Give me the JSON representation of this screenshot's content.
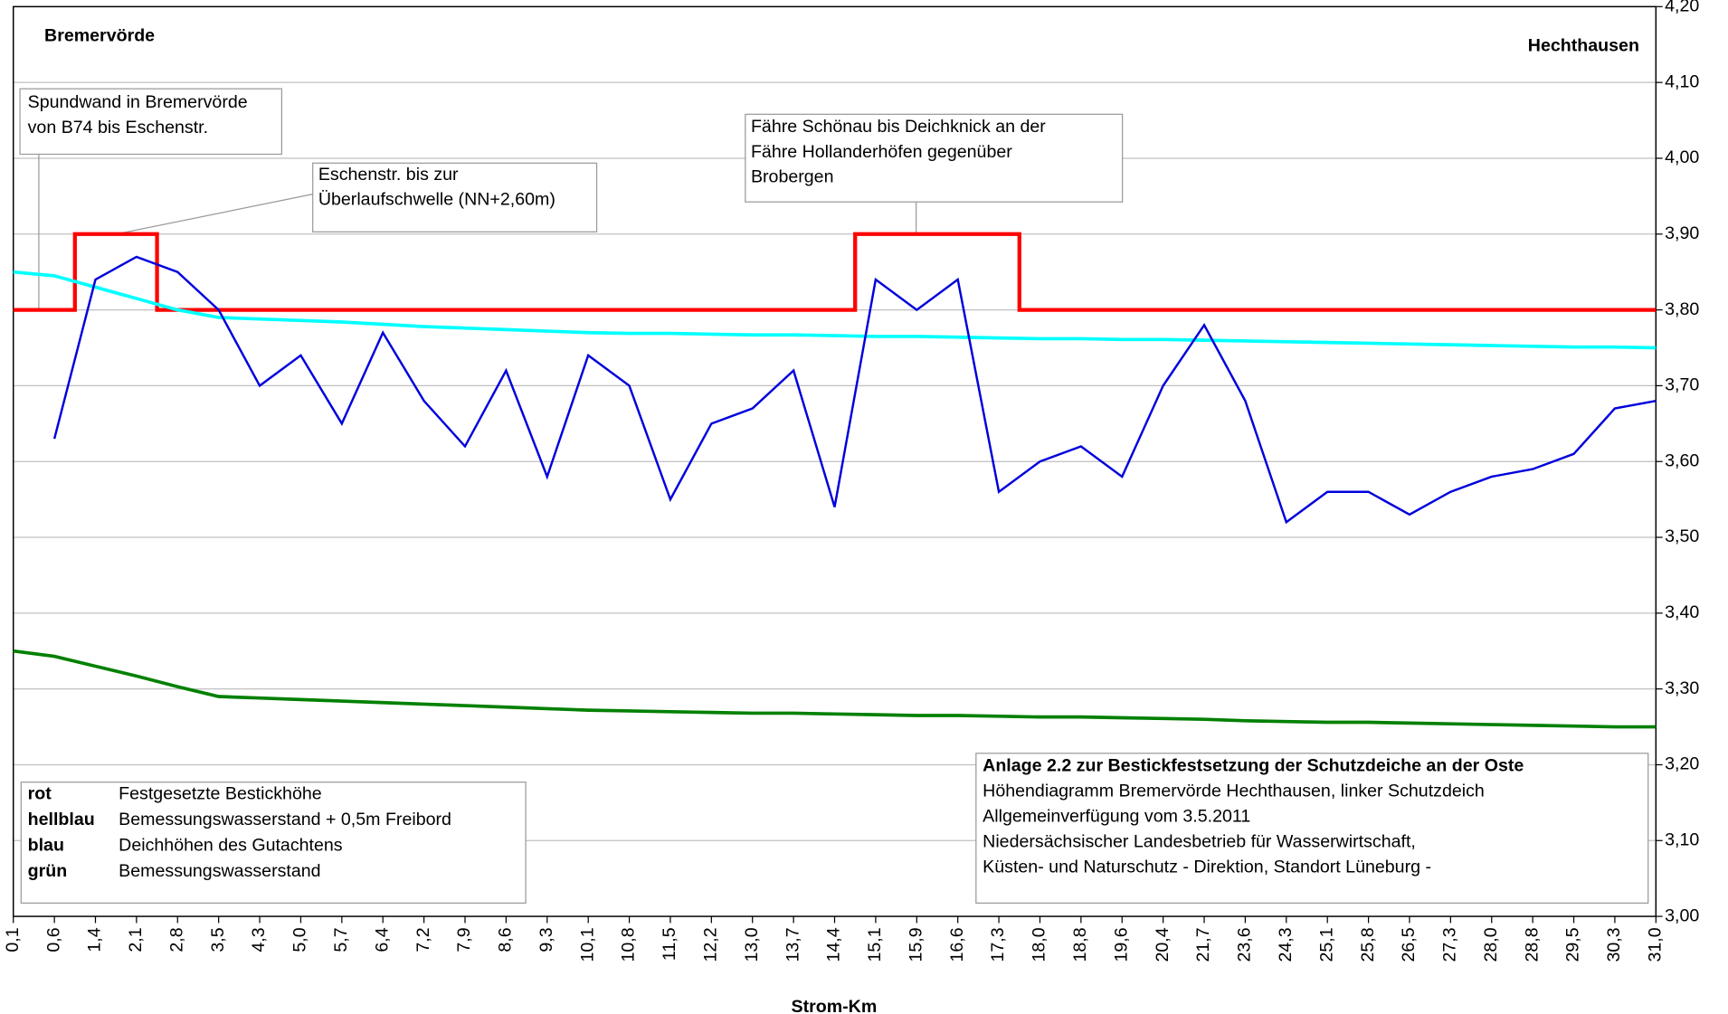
{
  "chart_data": {
    "type": "line",
    "place_left": "Bremervörde",
    "place_right": "Hechthausen",
    "xlabel": "Strom-Km",
    "categories": [
      "0,1",
      "0,6",
      "1,4",
      "2,1",
      "2,8",
      "3,5",
      "4,3",
      "5,0",
      "5,7",
      "6,4",
      "7,2",
      "7,9",
      "8,6",
      "9,3",
      "10,1",
      "10,8",
      "11,5",
      "12,2",
      "13,0",
      "13,7",
      "14,4",
      "15,1",
      "15,9",
      "16,6",
      "17,3",
      "18,0",
      "18,8",
      "19,6",
      "20,4",
      "21,7",
      "23,6",
      "24,3",
      "25,1",
      "25,8",
      "26,5",
      "27,3",
      "28,0",
      "28,8",
      "29,5",
      "30,3",
      "31,0"
    ],
    "ylim": [
      3.0,
      4.2
    ],
    "yticks": [
      {
        "value": 3.0,
        "label": "3,00"
      },
      {
        "value": 3.1,
        "label": "3,10"
      },
      {
        "value": 3.2,
        "label": "3,20"
      },
      {
        "value": 3.3,
        "label": "3,30"
      },
      {
        "value": 3.4,
        "label": "3,40"
      },
      {
        "value": 3.5,
        "label": "3,50"
      },
      {
        "value": 3.6,
        "label": "3,60"
      },
      {
        "value": 3.7,
        "label": "3,70"
      },
      {
        "value": 3.8,
        "label": "3,80"
      },
      {
        "value": 3.9,
        "label": "3,90"
      },
      {
        "value": 4.0,
        "label": "4,00"
      },
      {
        "value": 4.1,
        "label": "4,10"
      },
      {
        "value": 4.2,
        "label": "4,20"
      }
    ],
    "grid": true,
    "series": [
      {
        "name": "Festgesetzte Bestickhöhe",
        "color_word": "rot",
        "color": "#ff0000",
        "step": true,
        "values": [
          3.8,
          3.8,
          3.9,
          3.9,
          3.8,
          3.8,
          3.8,
          3.8,
          3.8,
          3.8,
          3.8,
          3.8,
          3.8,
          3.8,
          3.8,
          3.8,
          3.8,
          3.8,
          3.8,
          3.8,
          3.8,
          3.9,
          3.9,
          3.9,
          3.9,
          3.8,
          3.8,
          3.8,
          3.8,
          3.8,
          3.8,
          3.8,
          3.8,
          3.8,
          3.8,
          3.8,
          3.8,
          3.8,
          3.8,
          3.8,
          3.8
        ]
      },
      {
        "name": "Bemessungswasserstand + 0,5m Freibord",
        "color_word": "hellblau",
        "color": "#00ffff",
        "values": [
          3.85,
          3.845,
          3.83,
          3.815,
          3.8,
          3.79,
          3.788,
          3.786,
          3.784,
          3.781,
          3.778,
          3.776,
          3.774,
          3.772,
          3.77,
          3.769,
          3.769,
          3.768,
          3.767,
          3.767,
          3.766,
          3.765,
          3.765,
          3.764,
          3.763,
          3.762,
          3.762,
          3.761,
          3.761,
          3.76,
          3.759,
          3.758,
          3.757,
          3.756,
          3.755,
          3.754,
          3.753,
          3.752,
          3.751,
          3.751,
          3.75
        ]
      },
      {
        "name": "Deichhöhen des Gutachtens",
        "color_word": "blau",
        "color": "#0000dd",
        "values": [
          null,
          3.63,
          3.84,
          3.87,
          3.85,
          3.8,
          3.7,
          3.74,
          3.65,
          3.77,
          3.68,
          3.62,
          3.72,
          3.58,
          3.74,
          3.7,
          3.55,
          3.65,
          3.67,
          3.72,
          3.54,
          3.84,
          3.8,
          3.84,
          3.56,
          3.6,
          3.62,
          3.58,
          3.7,
          3.78,
          3.68,
          3.52,
          3.56,
          3.56,
          3.53,
          3.56,
          3.58,
          3.59,
          3.61,
          3.67,
          3.68
        ]
      },
      {
        "name": "Bemessungswasserstand",
        "color_word": "grün",
        "color": "#008000",
        "values": [
          3.35,
          3.343,
          3.33,
          3.317,
          3.303,
          3.29,
          3.288,
          3.286,
          3.284,
          3.282,
          3.28,
          3.278,
          3.276,
          3.274,
          3.272,
          3.271,
          3.27,
          3.269,
          3.268,
          3.268,
          3.267,
          3.266,
          3.265,
          3.265,
          3.264,
          3.263,
          3.263,
          3.262,
          3.261,
          3.26,
          3.258,
          3.257,
          3.256,
          3.256,
          3.255,
          3.254,
          3.253,
          3.252,
          3.251,
          3.25,
          3.25
        ]
      }
    ],
    "annotations": [
      {
        "lines": [
          "Spundwand in Bremervörde",
          "von B74 bis Eschenstr."
        ]
      },
      {
        "lines": [
          "Eschenstr. bis zur",
          "Überlaufschwelle (NN+2,60m)"
        ]
      },
      {
        "lines": [
          "Fähre Schönau bis Deichknick an der",
          "Fähre Hollanderhöfen gegenüber",
          "Brobergen"
        ]
      }
    ],
    "info": [
      "Anlage 2.2 zur Bestickfestsetzung der Schutzdeiche an der Oste",
      "Höhendiagramm Bremervörde Hechthausen, linker Schutzdeich",
      "Allgemeinverfügung vom 3.5.2011",
      "Niedersächsischer Landesbetrieb für Wasserwirtschaft,",
      "Küsten- und Naturschutz - Direktion, Standort Lüneburg -"
    ]
  }
}
